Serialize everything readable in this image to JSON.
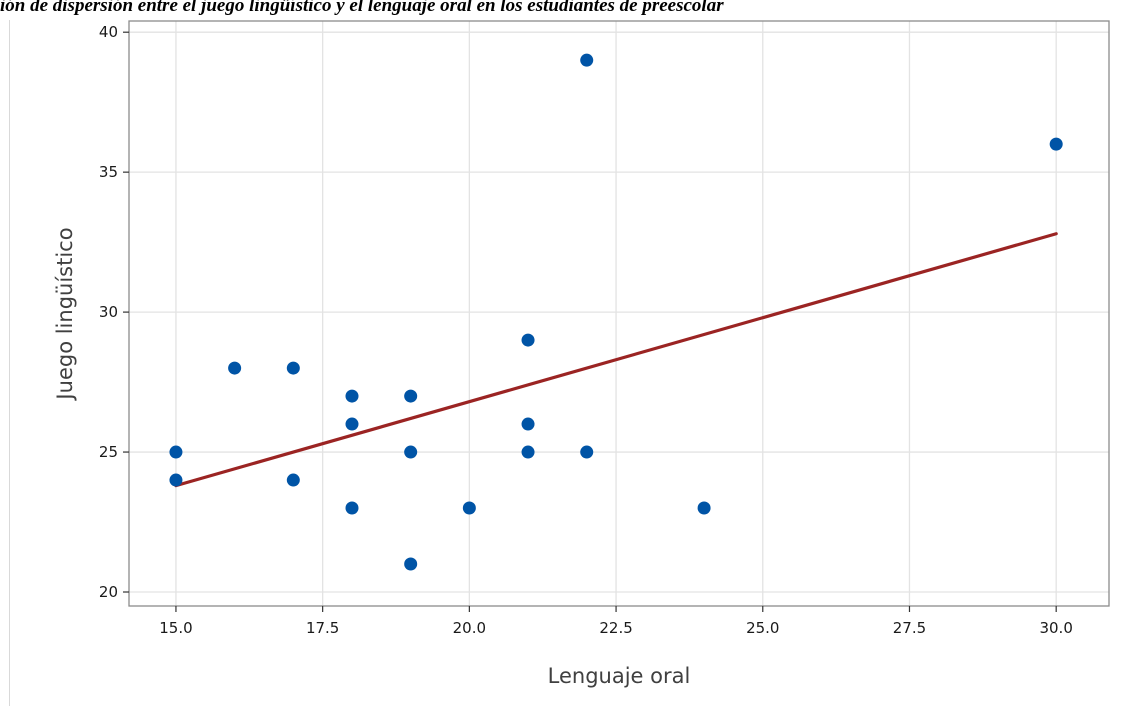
{
  "caption": "ión de dispersión entre el juego lingüístico y el lenguaje oral en los estudiantes de preescolar",
  "colors": {
    "point": "#0054a6",
    "fit_line": "#9b2423",
    "grid": "#e3e3e3",
    "frame": "#8c8c8c"
  },
  "chart_data": {
    "type": "scatter",
    "title": "",
    "xlabel": "Lenguaje oral",
    "ylabel": "Juego lingüístico",
    "xlim": [
      14.2,
      30.9
    ],
    "ylim": [
      19.5,
      40.4
    ],
    "xticks": [
      15.0,
      17.5,
      20.0,
      22.5,
      25.0,
      27.5,
      30.0
    ],
    "xtick_labels": [
      "15.0",
      "17.5",
      "20.0",
      "22.5",
      "25.0",
      "27.5",
      "30.0"
    ],
    "yticks": [
      20,
      25,
      30,
      35,
      40
    ],
    "ytick_labels": [
      "20",
      "25",
      "30",
      "35",
      "40"
    ],
    "grid": true,
    "points": [
      {
        "x": 15,
        "y": 25
      },
      {
        "x": 15,
        "y": 24
      },
      {
        "x": 16,
        "y": 28
      },
      {
        "x": 17,
        "y": 28
      },
      {
        "x": 17,
        "y": 24
      },
      {
        "x": 18,
        "y": 27
      },
      {
        "x": 18,
        "y": 26
      },
      {
        "x": 18,
        "y": 23
      },
      {
        "x": 19,
        "y": 27
      },
      {
        "x": 19,
        "y": 25
      },
      {
        "x": 19,
        "y": 21
      },
      {
        "x": 20,
        "y": 23
      },
      {
        "x": 21,
        "y": 29
      },
      {
        "x": 21,
        "y": 26
      },
      {
        "x": 21,
        "y": 25
      },
      {
        "x": 22,
        "y": 39
      },
      {
        "x": 22,
        "y": 25
      },
      {
        "x": 24,
        "y": 23
      },
      {
        "x": 30,
        "y": 36
      }
    ],
    "fit_line": {
      "x": [
        15,
        30
      ],
      "y": [
        23.8,
        32.8
      ]
    }
  }
}
